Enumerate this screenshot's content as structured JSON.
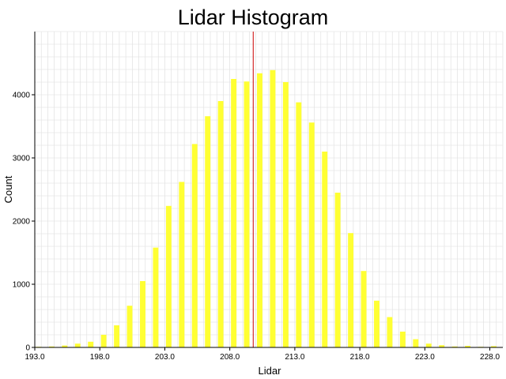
{
  "chart_data": {
    "type": "bar",
    "title": "Lidar Histogram",
    "xlabel": "Lidar",
    "ylabel": "Count",
    "xlim": [
      193.0,
      229.0
    ],
    "ylim": [
      0,
      5000
    ],
    "x_ticks": [
      "193.0",
      "198.0",
      "203.0",
      "208.0",
      "213.0",
      "218.0",
      "223.0",
      "228.0"
    ],
    "y_ticks": [
      "0",
      "1000",
      "2000",
      "3000",
      "4000"
    ],
    "grid": true,
    "marker_line_x": 209.8,
    "colors": {
      "bar": "#ffff33",
      "marker": "#cc0000",
      "grid": "#dddddd"
    },
    "series": [
      {
        "x": [
          193.3,
          194.3,
          195.3,
          196.3,
          197.3,
          198.3,
          199.3,
          200.3,
          201.3,
          202.3,
          203.3,
          204.3,
          205.3,
          206.3,
          207.3,
          208.3,
          209.3,
          210.3,
          211.3,
          212.3,
          213.3,
          214.3,
          215.3,
          216.3,
          217.3,
          218.3,
          219.3,
          220.3,
          221.3,
          222.3,
          223.3,
          224.3,
          225.3,
          226.3,
          227.3,
          228.3
        ],
        "values": [
          10,
          15,
          30,
          60,
          90,
          200,
          350,
          660,
          1050,
          1580,
          2240,
          2620,
          3220,
          3660,
          3900,
          4250,
          4210,
          4340,
          4390,
          4200,
          3880,
          3560,
          3100,
          2450,
          1810,
          1210,
          740,
          480,
          250,
          130,
          60,
          35,
          15,
          25,
          10,
          20
        ]
      }
    ]
  }
}
